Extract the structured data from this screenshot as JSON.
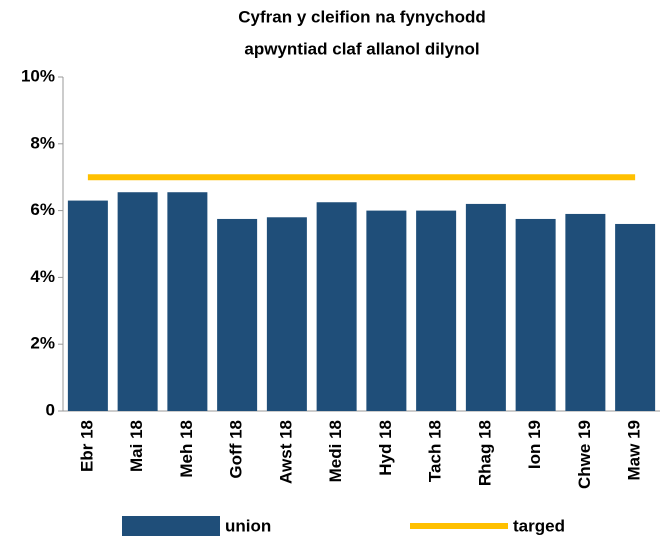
{
  "chart_data": {
    "type": "bar",
    "title": [
      "Cyfran y cleifion na fynychodd",
      "apwyntiad claf allanol dilynol"
    ],
    "categories": [
      "Ebr 18",
      "Mai 18",
      "Meh 18",
      "Goff 18",
      "Awst 18",
      "Medi 18",
      "Hyd 18",
      "Tach 18",
      "Rhag 18",
      "Ion 19",
      "Chwe 19",
      "Maw 19"
    ],
    "series": [
      {
        "name": "union",
        "color": "#1f4e79",
        "values": [
          6.3,
          6.55,
          6.55,
          5.75,
          5.8,
          6.25,
          6.0,
          6.0,
          6.2,
          5.75,
          5.9,
          5.6
        ]
      },
      {
        "name": "targed",
        "color": "#ffc000",
        "type": "line",
        "values": [
          7,
          7,
          7,
          7,
          7,
          7,
          7,
          7,
          7,
          7,
          7,
          7
        ]
      }
    ],
    "ylim": [
      0,
      10
    ],
    "yticks": [
      0,
      {
        "value": 2,
        "label": "2%"
      },
      {
        "value": 4,
        "label": "4%"
      },
      {
        "value": 6,
        "label": "6%"
      },
      {
        "value": 8,
        "label": "8%"
      },
      {
        "value": 10,
        "label": "10%"
      }
    ],
    "grid": false,
    "legend": "bottom"
  }
}
